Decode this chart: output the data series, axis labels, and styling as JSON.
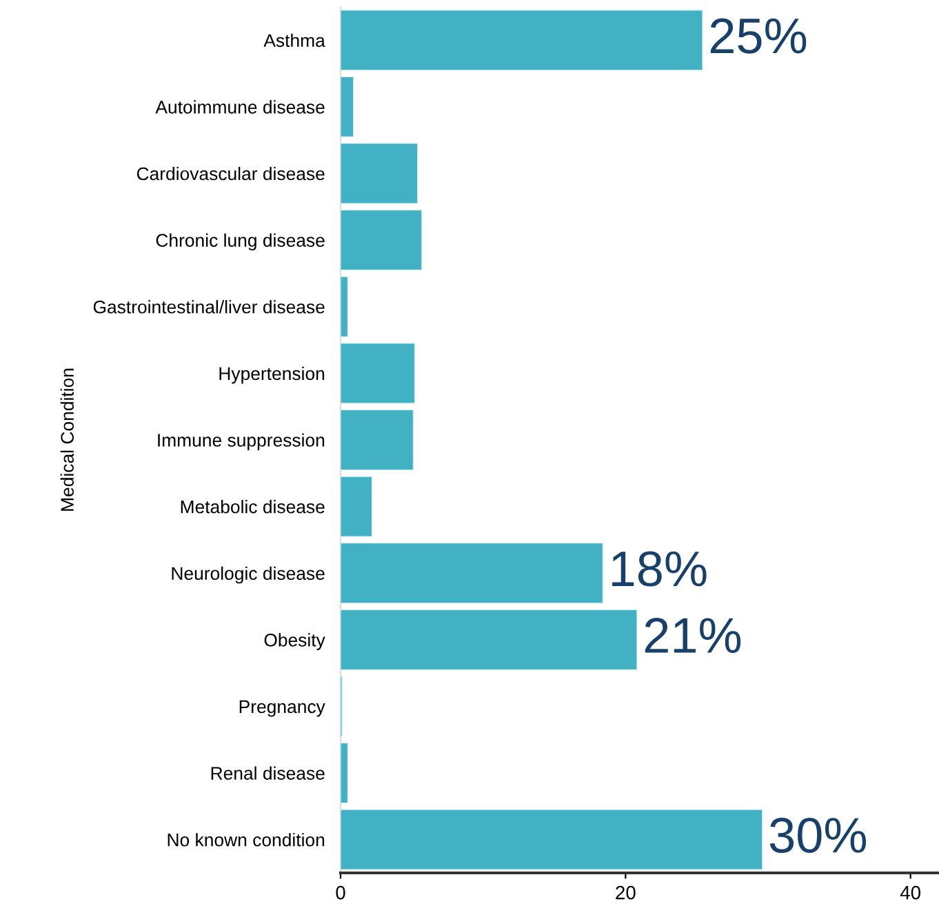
{
  "chart_data": {
    "type": "bar",
    "orientation": "horizontal",
    "ylabel": "Medical Condition",
    "categories": [
      "Asthma",
      "Autoimmune disease",
      "Cardiovascular disease",
      "Chronic lung disease",
      "Gastrointestinal/liver disease",
      "Hypertension",
      "Immune suppression",
      "Metabolic disease",
      "Neurologic disease",
      "Obesity",
      "Pregnancy",
      "Renal disease",
      "No known condition"
    ],
    "values": [
      25.4,
      0.9,
      5.4,
      5.7,
      0.5,
      5.2,
      5.1,
      2.2,
      18.4,
      20.8,
      0.1,
      0.5,
      29.6
    ],
    "value_labels": [
      "25%",
      null,
      null,
      null,
      null,
      null,
      null,
      null,
      "18%",
      "21%",
      null,
      null,
      "30%"
    ],
    "color": "#43b1c4",
    "xlim": [
      0,
      42
    ],
    "xticks": [
      0,
      20,
      40
    ],
    "grid": false,
    "legend": false
  }
}
